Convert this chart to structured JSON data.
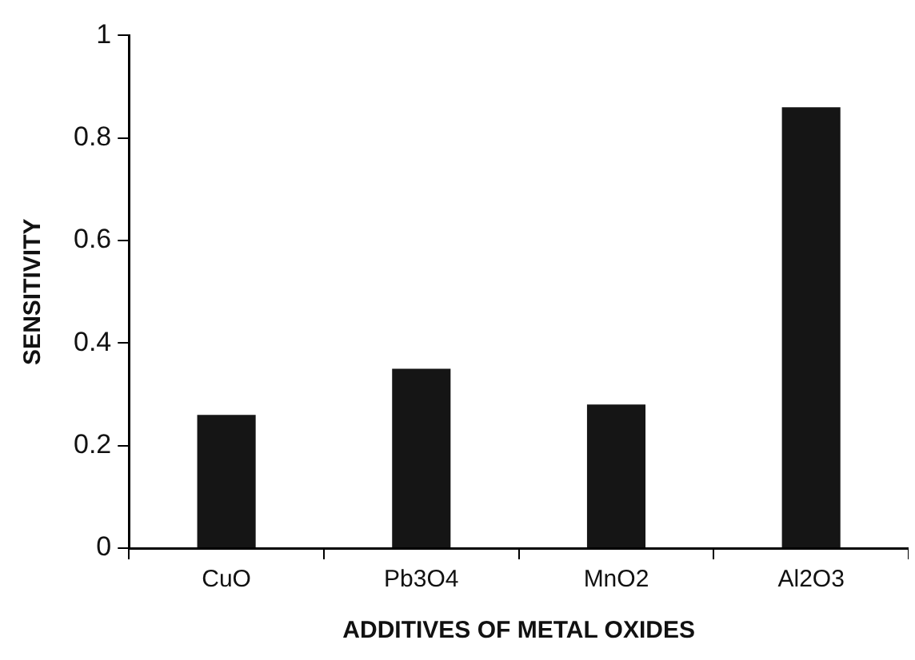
{
  "chart_data": {
    "type": "bar",
    "xlabel": "ADDITIVES OF METAL OXIDES",
    "ylabel": "SENSITIVITY",
    "categories": [
      "CuO",
      "Pb3O4",
      "MnO2",
      "Al2O3"
    ],
    "values": [
      0.26,
      0.35,
      0.28,
      0.86
    ],
    "color": "#151515",
    "ylim": [
      0,
      1
    ],
    "yticks": [
      0,
      0.2,
      0.4,
      0.6,
      0.8,
      1
    ],
    "grid": false,
    "legend": false
  }
}
